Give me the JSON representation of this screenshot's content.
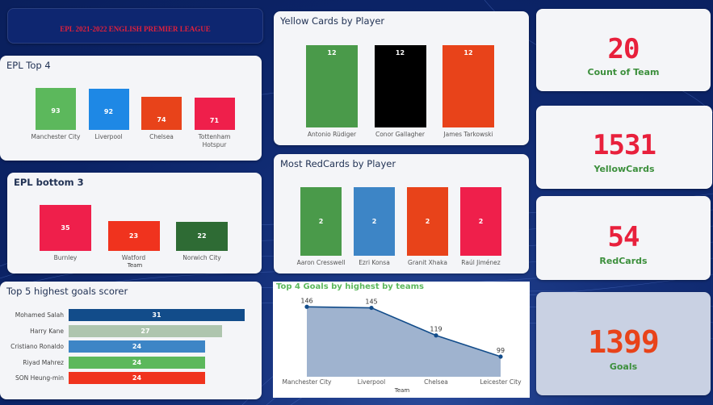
{
  "header": {
    "title": "EPL 2021-2022 ENGLISH PREMIER LEAGUE"
  },
  "top4": {
    "title": "EPL Top 4",
    "bars": [
      {
        "label": "Manchester City",
        "value": 93,
        "color": "#5cb85c"
      },
      {
        "label": "Liverpool",
        "value": 92,
        "color": "#1e88e5"
      },
      {
        "label": "Chelsea",
        "value": 74,
        "color": "#e8431a"
      },
      {
        "label": "Tottenham Hotspur",
        "value": 71,
        "color": "#ef1f4b"
      }
    ]
  },
  "bottom3": {
    "title": "EPL bottom 3",
    "xlabel": "Team",
    "bars": [
      {
        "label": "Burnley",
        "value": 35,
        "color": "#ef1f4b"
      },
      {
        "label": "Watford",
        "value": 23,
        "color": "#f0331e"
      },
      {
        "label": "Norwich City",
        "value": 22,
        "color": "#2e6b34"
      }
    ]
  },
  "yellow": {
    "title": "Yellow Cards by Player",
    "bars": [
      {
        "label": "Antonio Rüdiger",
        "value": 12,
        "color": "#4a9a4a"
      },
      {
        "label": "Conor Gallagher",
        "value": 12,
        "color": "#000000"
      },
      {
        "label": "James Tarkowski",
        "value": 12,
        "color": "#e8431a"
      }
    ]
  },
  "red": {
    "title": "Most RedCards by Player",
    "bars": [
      {
        "label": "Aaron Cresswell",
        "value": 2,
        "color": "#4a9a4a"
      },
      {
        "label": "Ezri Konsa",
        "value": 2,
        "color": "#3d85c6"
      },
      {
        "label": "Granit Xhaka",
        "value": 2,
        "color": "#e8431a"
      },
      {
        "label": "Raúl Jiménez",
        "value": 2,
        "color": "#ef1f4b"
      }
    ]
  },
  "scorers": {
    "title": "Top 5 highest goals scorer",
    "bars": [
      {
        "label": "Mohamed Salah",
        "value": 31,
        "color": "#124c8a"
      },
      {
        "label": "Harry Kane",
        "value": 27,
        "color": "#aec5ae"
      },
      {
        "label": "Cristiano Ronaldo",
        "value": 24,
        "color": "#3d85c6"
      },
      {
        "label": "Riyad Mahrez",
        "value": 24,
        "color": "#5cb85c"
      },
      {
        "label": "SON Heung-min",
        "value": 24,
        "color": "#f0331e"
      }
    ]
  },
  "chart_data": {
    "type": "area",
    "title": "Top 4 Goals by highest by teams",
    "xlabel": "Team",
    "categories": [
      "Manchester City",
      "Liverpool",
      "Chelsea",
      "Leicester City"
    ],
    "values": [
      146,
      145,
      119,
      99
    ],
    "ylim": [
      80,
      150
    ]
  },
  "kpis": [
    {
      "value": "20",
      "label": "Count of Team",
      "color": "#e8203c"
    },
    {
      "value": "1531",
      "label": "YellowCards",
      "color": "#e8203c"
    },
    {
      "value": "54",
      "label": "RedCards",
      "color": "#e8203c"
    },
    {
      "value": "1399",
      "label": "Goals",
      "color": "#e8431a"
    }
  ]
}
